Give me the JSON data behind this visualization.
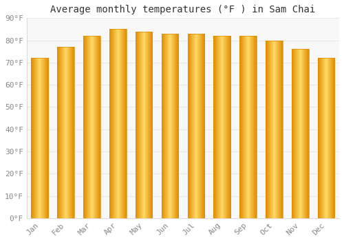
{
  "title": "Average monthly temperatures (°F ) in Sam Chai",
  "months": [
    "Jan",
    "Feb",
    "Mar",
    "Apr",
    "May",
    "Jun",
    "Jul",
    "Aug",
    "Sep",
    "Oct",
    "Nov",
    "Dec"
  ],
  "values": [
    72,
    77,
    82,
    85,
    84,
    83,
    83,
    82,
    82,
    80,
    76,
    72
  ],
  "bar_color_center": "#FFD966",
  "bar_color_edge": "#F5A623",
  "bar_color_dark": "#E08B00",
  "ylim": [
    0,
    90
  ],
  "yticks": [
    0,
    10,
    20,
    30,
    40,
    50,
    60,
    70,
    80,
    90
  ],
  "ytick_labels": [
    "0°F",
    "10°F",
    "20°F",
    "30°F",
    "40°F",
    "50°F",
    "60°F",
    "70°F",
    "80°F",
    "90°F"
  ],
  "background_color": "#ffffff",
  "plot_bg_color": "#f8f8f8",
  "grid_color": "#e8e8e8",
  "title_fontsize": 10,
  "tick_fontsize": 8,
  "bar_width": 0.65,
  "n_gradient_steps": 50
}
